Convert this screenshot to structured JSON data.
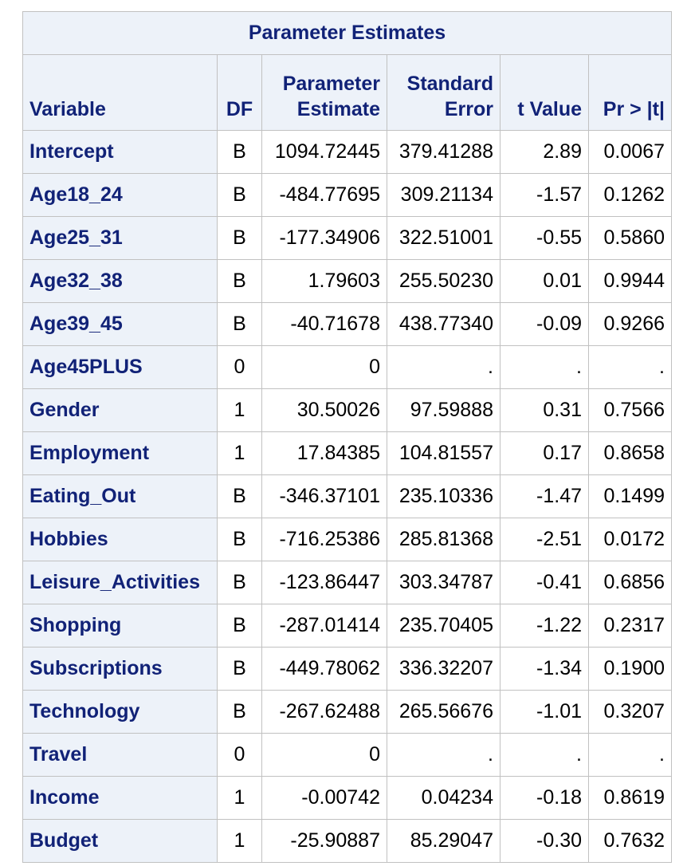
{
  "table": {
    "title": "Parameter Estimates",
    "headers": {
      "variable": "Variable",
      "df": "DF",
      "estimate_line1": "Parameter",
      "estimate_line2": "Estimate",
      "stderr_line1": "Standard",
      "stderr_line2": "Error",
      "tvalue": "t Value",
      "prob": "Pr > |t|"
    },
    "rows": [
      {
        "variable": "Intercept",
        "df": "B",
        "estimate": "1094.72445",
        "stderr": "379.41288",
        "tvalue": "2.89",
        "prob": "0.0067"
      },
      {
        "variable": "Age18_24",
        "df": "B",
        "estimate": "-484.77695",
        "stderr": "309.21134",
        "tvalue": "-1.57",
        "prob": "0.1262"
      },
      {
        "variable": "Age25_31",
        "df": "B",
        "estimate": "-177.34906",
        "stderr": "322.51001",
        "tvalue": "-0.55",
        "prob": "0.5860"
      },
      {
        "variable": "Age32_38",
        "df": "B",
        "estimate": "1.79603",
        "stderr": "255.50230",
        "tvalue": "0.01",
        "prob": "0.9944"
      },
      {
        "variable": "Age39_45",
        "df": "B",
        "estimate": "-40.71678",
        "stderr": "438.77340",
        "tvalue": "-0.09",
        "prob": "0.9266"
      },
      {
        "variable": "Age45PLUS",
        "df": "0",
        "estimate": "0",
        "stderr": ".",
        "tvalue": ".",
        "prob": "."
      },
      {
        "variable": "Gender",
        "df": "1",
        "estimate": "30.50026",
        "stderr": "97.59888",
        "tvalue": "0.31",
        "prob": "0.7566"
      },
      {
        "variable": "Employment",
        "df": "1",
        "estimate": "17.84385",
        "stderr": "104.81557",
        "tvalue": "0.17",
        "prob": "0.8658"
      },
      {
        "variable": "Eating_Out",
        "df": "B",
        "estimate": "-346.37101",
        "stderr": "235.10336",
        "tvalue": "-1.47",
        "prob": "0.1499"
      },
      {
        "variable": "Hobbies",
        "df": "B",
        "estimate": "-716.25386",
        "stderr": "285.81368",
        "tvalue": "-2.51",
        "prob": "0.0172"
      },
      {
        "variable": "Leisure_Activities",
        "df": "B",
        "estimate": "-123.86447",
        "stderr": "303.34787",
        "tvalue": "-0.41",
        "prob": "0.6856"
      },
      {
        "variable": "Shopping",
        "df": "B",
        "estimate": "-287.01414",
        "stderr": "235.70405",
        "tvalue": "-1.22",
        "prob": "0.2317"
      },
      {
        "variable": "Subscriptions",
        "df": "B",
        "estimate": "-449.78062",
        "stderr": "336.32207",
        "tvalue": "-1.34",
        "prob": "0.1900"
      },
      {
        "variable": "Technology",
        "df": "B",
        "estimate": "-267.62488",
        "stderr": "265.56676",
        "tvalue": "-1.01",
        "prob": "0.3207"
      },
      {
        "variable": "Travel",
        "df": "0",
        "estimate": "0",
        "stderr": ".",
        "tvalue": ".",
        "prob": "."
      },
      {
        "variable": "Income",
        "df": "1",
        "estimate": "-0.00742",
        "stderr": "0.04234",
        "tvalue": "-0.18",
        "prob": "0.8619"
      },
      {
        "variable": "Budget",
        "df": "1",
        "estimate": "-25.90887",
        "stderr": "85.29047",
        "tvalue": "-0.30",
        "prob": "0.7632"
      }
    ]
  },
  "colors": {
    "header_bg": "#edf2f9",
    "header_text": "#112277",
    "border": "#c1c1c1"
  }
}
